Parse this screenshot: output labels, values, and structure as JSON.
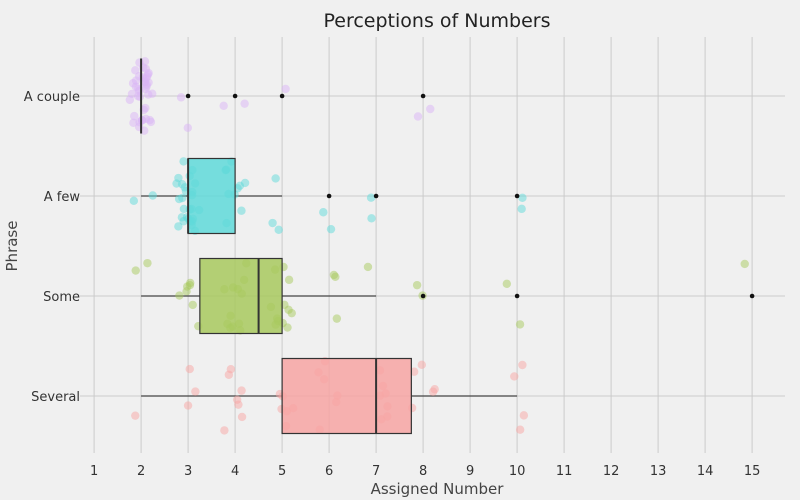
{
  "chart_data": {
    "type": "box_strip",
    "title": "Perceptions of Numbers",
    "xlabel": "Assigned Number",
    "ylabel": "Phrase",
    "xlim": [
      0.7,
      15.7
    ],
    "xticks": [
      1,
      2,
      3,
      4,
      5,
      6,
      7,
      8,
      9,
      10,
      11,
      12,
      13,
      14,
      15
    ],
    "grid": true,
    "categories": [
      "A couple",
      "A few",
      "Some",
      "Several"
    ],
    "colors": [
      "#d9b3f5",
      "#5fd9d9",
      "#a8c95e",
      "#f7a5a3"
    ],
    "boxes": [
      {
        "category": "A couple",
        "min": 2,
        "q1": 2,
        "median": 2,
        "q3": 2,
        "max": 2,
        "outliers": [
          3,
          4,
          5,
          8
        ]
      },
      {
        "category": "A few",
        "min": 2,
        "q1": 3,
        "median": 3,
        "q3": 4,
        "max": 5,
        "outliers": [
          6,
          7,
          10
        ]
      },
      {
        "category": "Some",
        "min": 2,
        "q1": 3.25,
        "median": 4.5,
        "q3": 5,
        "max": 7,
        "outliers": [
          8,
          10,
          15
        ]
      },
      {
        "category": "Several",
        "min": 2,
        "q1": 5,
        "median": 7,
        "q3": 7.75,
        "max": 10,
        "outliers": []
      }
    ],
    "points": [
      {
        "category": "A couple",
        "values": [
          2,
          2,
          2,
          2,
          2,
          2,
          2,
          2,
          2,
          2,
          2,
          2,
          2,
          2,
          2,
          2,
          2,
          2,
          2,
          2,
          2,
          2,
          2,
          2,
          2,
          2,
          2,
          2,
          2,
          2,
          2,
          2,
          2,
          2,
          2,
          2,
          2,
          2,
          2,
          2,
          3,
          3,
          4,
          4,
          5,
          8,
          8
        ]
      },
      {
        "category": "A few",
        "values": [
          2,
          2,
          3,
          3,
          3,
          3,
          3,
          3,
          3,
          3,
          3,
          3,
          3,
          3,
          3,
          3,
          3,
          3,
          3,
          3,
          3,
          3,
          3,
          3,
          3,
          3,
          3,
          3,
          3,
          4,
          4,
          4,
          4,
          4,
          4,
          4,
          4,
          4,
          4,
          5,
          5,
          5,
          6,
          6,
          7,
          7,
          10,
          10
        ]
      },
      {
        "category": "Some",
        "values": [
          2,
          2,
          3,
          3,
          3,
          3,
          3,
          3,
          3,
          4,
          4,
          4,
          4,
          4,
          4,
          4,
          4,
          4,
          4,
          4,
          4,
          5,
          5,
          5,
          5,
          5,
          5,
          5,
          5,
          5,
          5,
          5,
          5,
          6,
          6,
          6,
          7,
          8,
          8,
          10,
          10,
          15
        ]
      },
      {
        "category": "Several",
        "values": [
          2,
          3,
          3,
          3,
          4,
          4,
          4,
          4,
          4,
          4,
          4,
          5,
          5,
          5,
          5,
          5,
          5,
          6,
          6,
          6,
          6,
          6,
          6,
          7,
          7,
          7,
          7,
          7,
          7,
          7,
          8,
          8,
          8,
          8,
          8,
          10,
          10,
          10,
          10
        ]
      }
    ]
  }
}
